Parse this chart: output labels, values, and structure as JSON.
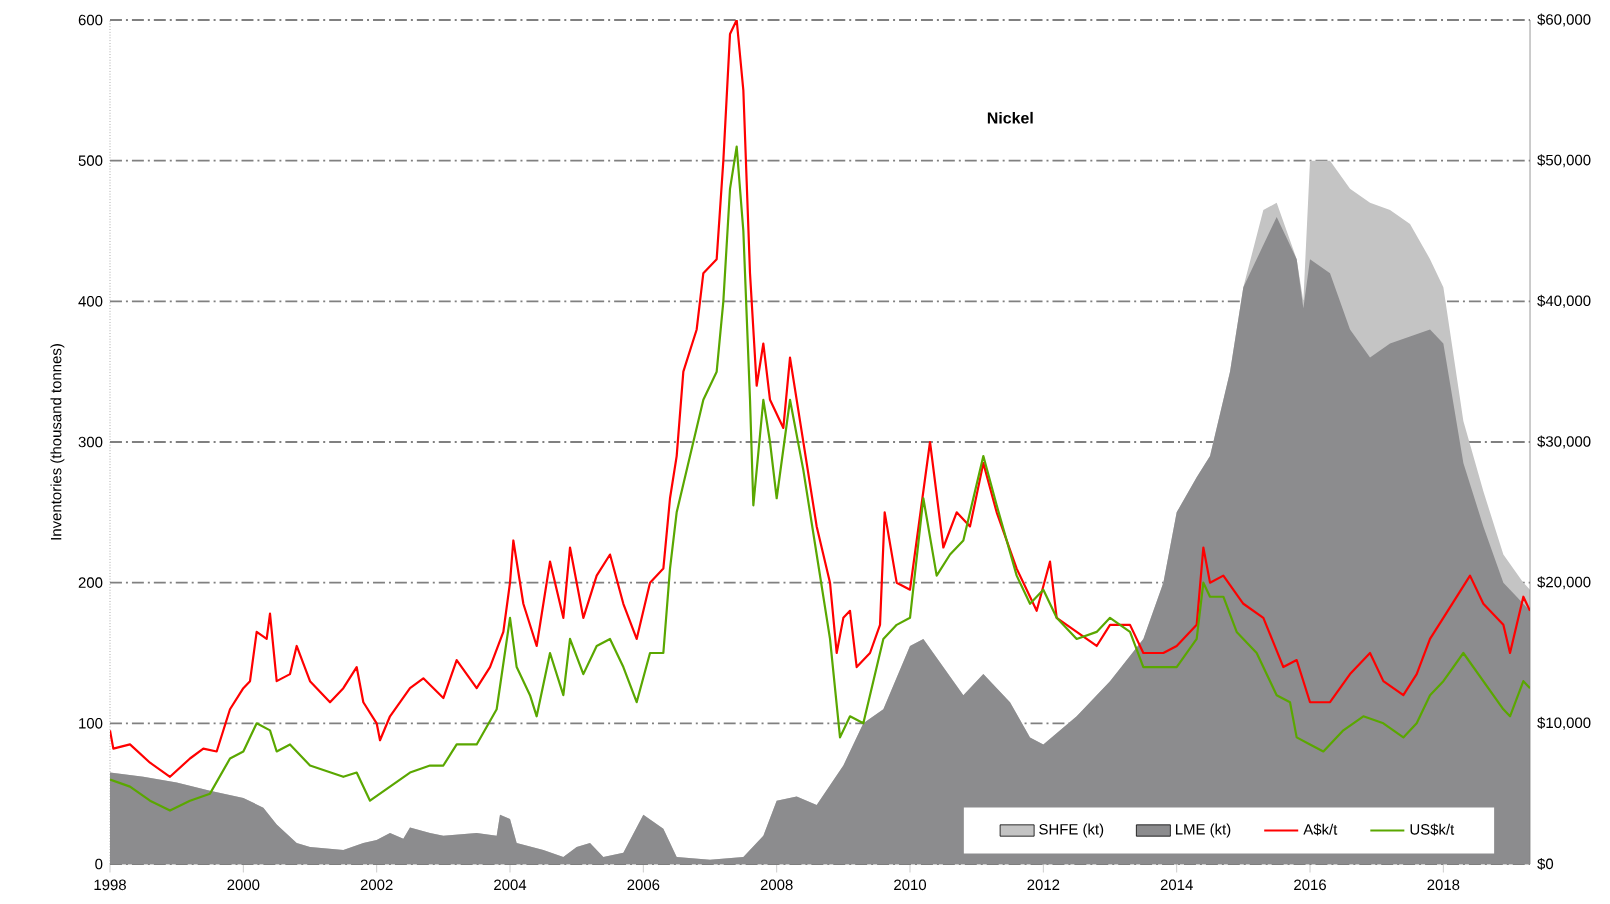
{
  "chart_data": {
    "type": "line",
    "title": "Nickel",
    "ylabel": "Inventories (thousand tonnes)",
    "xlim": [
      1998,
      2019.3
    ],
    "xticks": [
      1998,
      2000,
      2002,
      2004,
      2006,
      2008,
      2010,
      2012,
      2014,
      2016,
      2018
    ],
    "ylim": [
      0,
      600
    ],
    "yticks": [
      0,
      100,
      200,
      300,
      400,
      500,
      600
    ],
    "y2lim": [
      0,
      60000
    ],
    "y2ticks": [
      {
        "value": 0,
        "label": "$0"
      },
      {
        "value": 10000,
        "label": "$10,000"
      },
      {
        "value": 20000,
        "label": "$20,000"
      },
      {
        "value": 30000,
        "label": "$30,000"
      },
      {
        "value": 40000,
        "label": "$40,000"
      },
      {
        "value": 50000,
        "label": "$50,000"
      },
      {
        "value": 60000,
        "label": "$60,000"
      }
    ],
    "grid": "y",
    "legend": "bottom right",
    "stacked": true,
    "series": [
      {
        "name": "LME (kt)",
        "type": "area",
        "color": "#8c8c8e",
        "x": [
          1998,
          1998.5,
          1999,
          1999.5,
          2000,
          2000.3,
          2000.5,
          2000.8,
          2001,
          2001.5,
          2001.8,
          2002,
          2002.2,
          2002.4,
          2002.5,
          2002.8,
          2003,
          2003.5,
          2003.8,
          2003.85,
          2004,
          2004.1,
          2004.5,
          2004.8,
          2005,
          2005.2,
          2005.4,
          2005.7,
          2006,
          2006.3,
          2006.5,
          2007,
          2007.5,
          2007.8,
          2008,
          2008.3,
          2008.6,
          2009,
          2009.3,
          2009.6,
          2010,
          2010.2,
          2010.5,
          2010.8,
          2011.1,
          2011.5,
          2011.8,
          2012,
          2012.5,
          2013,
          2013.5,
          2013.8,
          2014,
          2014.3,
          2014.5,
          2014.8,
          2015,
          2015.3,
          2015.5,
          2015.8,
          2015.9,
          2016,
          2016.3,
          2016.6,
          2016.9,
          2017.2,
          2017.5,
          2017.8,
          2018,
          2018.3,
          2018.6,
          2018.9,
          2019.2,
          2019.3
        ],
        "values": [
          65,
          62,
          58,
          52,
          47,
          40,
          28,
          15,
          12,
          10,
          15,
          17,
          22,
          18,
          26,
          22,
          20,
          22,
          20,
          35,
          32,
          15,
          10,
          5,
          12,
          15,
          5,
          8,
          35,
          25,
          5,
          3,
          5,
          20,
          45,
          48,
          42,
          70,
          100,
          110,
          155,
          160,
          140,
          120,
          135,
          115,
          90,
          85,
          105,
          130,
          160,
          200,
          250,
          275,
          290,
          350,
          410,
          440,
          460,
          430,
          395,
          430,
          420,
          380,
          360,
          370,
          375,
          380,
          370,
          285,
          240,
          200,
          185,
          180
        ]
      },
      {
        "name": "SHFE (kt)",
        "type": "area",
        "color": "#c4c4c4",
        "x": [
          1998,
          1998.5,
          1999,
          1999.5,
          2000,
          2000.3,
          2000.5,
          2000.8,
          2001,
          2001.5,
          2001.8,
          2002,
          2002.2,
          2002.4,
          2002.5,
          2002.8,
          2003,
          2003.5,
          2003.8,
          2003.85,
          2004,
          2004.1,
          2004.5,
          2004.8,
          2005,
          2005.2,
          2005.4,
          2005.7,
          2006,
          2006.3,
          2006.5,
          2007,
          2007.5,
          2007.8,
          2008,
          2008.3,
          2008.6,
          2009,
          2009.3,
          2009.6,
          2010,
          2010.2,
          2010.5,
          2010.8,
          2011.1,
          2011.5,
          2011.8,
          2012,
          2012.5,
          2013,
          2013.5,
          2013.8,
          2014,
          2014.3,
          2014.5,
          2014.8,
          2015,
          2015.3,
          2015.5,
          2015.8,
          2015.9,
          2016,
          2016.3,
          2016.6,
          2016.9,
          2017.2,
          2017.5,
          2017.8,
          2018,
          2018.3,
          2018.6,
          2018.9,
          2019.2,
          2019.3
        ],
        "values": [
          0,
          0,
          0,
          0,
          0,
          0,
          0,
          0,
          0,
          0,
          0,
          0,
          0,
          0,
          0,
          0,
          0,
          0,
          0,
          0,
          0,
          0,
          0,
          0,
          0,
          0,
          0,
          0,
          0,
          0,
          0,
          0,
          0,
          0,
          0,
          0,
          0,
          0,
          0,
          0,
          0,
          0,
          0,
          0,
          0,
          0,
          0,
          0,
          0,
          0,
          0,
          0,
          0,
          0,
          0,
          0,
          0,
          25,
          10,
          0,
          5,
          70,
          80,
          100,
          110,
          95,
          80,
          50,
          40,
          30,
          25,
          20,
          15,
          15
        ]
      },
      {
        "name": "A$k/t",
        "type": "line",
        "axis": "y2",
        "color": "#ff0000",
        "x": [
          1998,
          1998.05,
          1998.3,
          1998.6,
          1998.9,
          1999.2,
          1999.4,
          1999.6,
          1999.8,
          2000,
          2000.1,
          2000.2,
          2000.35,
          2000.4,
          2000.5,
          2000.7,
          2000.8,
          2001,
          2001.3,
          2001.5,
          2001.7,
          2001.8,
          2002,
          2002.05,
          2002.2,
          2002.5,
          2002.7,
          2003,
          2003.2,
          2003.5,
          2003.7,
          2003.9,
          2004,
          2004.05,
          2004.2,
          2004.4,
          2004.6,
          2004.8,
          2004.9,
          2005.1,
          2005.3,
          2005.5,
          2005.7,
          2005.9,
          2006.1,
          2006.3,
          2006.4,
          2006.5,
          2006.6,
          2006.8,
          2006.9,
          2007.1,
          2007.2,
          2007.3,
          2007.4,
          2007.5,
          2007.6,
          2007.7,
          2007.8,
          2007.9,
          2008.1,
          2008.2,
          2008.4,
          2008.6,
          2008.8,
          2008.9,
          2009,
          2009.1,
          2009.2,
          2009.4,
          2009.55,
          2009.62,
          2009.8,
          2010,
          2010.3,
          2010.5,
          2010.7,
          2010.9,
          2011.1,
          2011.3,
          2011.6,
          2011.9,
          2012.1,
          2012.2,
          2012.5,
          2012.8,
          2013,
          2013.3,
          2013.5,
          2013.8,
          2014,
          2014.3,
          2014.4,
          2014.5,
          2014.7,
          2015,
          2015.3,
          2015.6,
          2015.8,
          2016,
          2016.3,
          2016.6,
          2016.9,
          2017.1,
          2017.4,
          2017.6,
          2017.8,
          2018,
          2018.4,
          2018.6,
          2018.9,
          2019,
          2019.2,
          2019.3
        ],
        "values": [
          9500,
          8200,
          8500,
          7200,
          6200,
          7500,
          8200,
          8000,
          11000,
          12500,
          13000,
          16500,
          16000,
          17800,
          13000,
          13500,
          15500,
          13000,
          11500,
          12500,
          14000,
          11500,
          10000,
          8800,
          10500,
          12500,
          13200,
          11800,
          14500,
          12500,
          14000,
          16500,
          20000,
          23000,
          18500,
          15500,
          21500,
          17500,
          22500,
          17500,
          20500,
          22000,
          18500,
          16000,
          20000,
          21000,
          26000,
          29000,
          35000,
          38000,
          42000,
          43000,
          50000,
          59000,
          60000,
          55000,
          42000,
          34000,
          37000,
          33000,
          31000,
          36000,
          30000,
          24000,
          20000,
          15000,
          17500,
          18000,
          14000,
          15000,
          17000,
          25000,
          20000,
          19500,
          30000,
          22500,
          25000,
          24000,
          28500,
          25000,
          21000,
          18000,
          21500,
          17500,
          16500,
          15500,
          17000,
          17000,
          15000,
          15000,
          15500,
          17000,
          22500,
          20000,
          20500,
          18500,
          17500,
          14000,
          14500,
          11500,
          11500,
          13500,
          15000,
          13000,
          12000,
          13500,
          16000,
          17500,
          20500,
          18500,
          17000,
          15000,
          19000,
          18000
        ]
      },
      {
        "name": "US$k/t",
        "type": "line",
        "axis": "y2",
        "color": "#5aa700",
        "x": [
          1998,
          1998.3,
          1998.6,
          1998.9,
          1999.2,
          1999.5,
          1999.8,
          2000,
          2000.2,
          2000.4,
          2000.5,
          2000.7,
          2001,
          2001.5,
          2001.7,
          2001.9,
          2002.2,
          2002.5,
          2002.8,
          2003,
          2003.2,
          2003.5,
          2003.8,
          2004,
          2004.1,
          2004.3,
          2004.4,
          2004.6,
          2004.8,
          2004.9,
          2005.1,
          2005.3,
          2005.5,
          2005.7,
          2005.9,
          2006.1,
          2006.3,
          2006.4,
          2006.5,
          2006.7,
          2006.9,
          2007.1,
          2007.2,
          2007.3,
          2007.4,
          2007.5,
          2007.6,
          2007.65,
          2007.8,
          2007.9,
          2008,
          2008.2,
          2008.4,
          2008.6,
          2008.8,
          2008.95,
          2009.1,
          2009.3,
          2009.6,
          2009.8,
          2010,
          2010.2,
          2010.4,
          2010.6,
          2010.8,
          2011.1,
          2011.3,
          2011.6,
          2011.8,
          2012,
          2012.2,
          2012.5,
          2012.8,
          2013,
          2013.3,
          2013.5,
          2013.8,
          2014,
          2014.3,
          2014.4,
          2014.5,
          2014.7,
          2014.9,
          2015.2,
          2015.5,
          2015.7,
          2015.8,
          2016,
          2016.2,
          2016.5,
          2016.8,
          2017.1,
          2017.4,
          2017.6,
          2017.8,
          2018,
          2018.3,
          2018.6,
          2018.9,
          2019,
          2019.2,
          2019.3
        ],
        "values": [
          6000,
          5500,
          4500,
          3800,
          4500,
          5000,
          7500,
          8000,
          10000,
          9500,
          8000,
          8500,
          7000,
          6200,
          6500,
          4500,
          5500,
          6500,
          7000,
          7000,
          8500,
          8500,
          11000,
          17500,
          14000,
          12000,
          10500,
          15000,
          12000,
          16000,
          13500,
          15500,
          16000,
          14000,
          11500,
          15000,
          15000,
          21000,
          25000,
          29000,
          33000,
          35000,
          40000,
          48000,
          51000,
          45000,
          33000,
          25500,
          33000,
          30000,
          26000,
          33000,
          28000,
          22000,
          16000,
          9000,
          10500,
          10000,
          16000,
          17000,
          17500,
          26000,
          20500,
          22000,
          23000,
          29000,
          25500,
          20500,
          18500,
          19500,
          17500,
          16000,
          16500,
          17500,
          16500,
          14000,
          14000,
          14000,
          16000,
          20000,
          19000,
          19000,
          16500,
          15000,
          12000,
          11500,
          9000,
          8500,
          8000,
          9500,
          10500,
          10000,
          9000,
          10000,
          12000,
          13000,
          15000,
          13000,
          11000,
          10500,
          13000,
          12500
        ]
      }
    ]
  }
}
